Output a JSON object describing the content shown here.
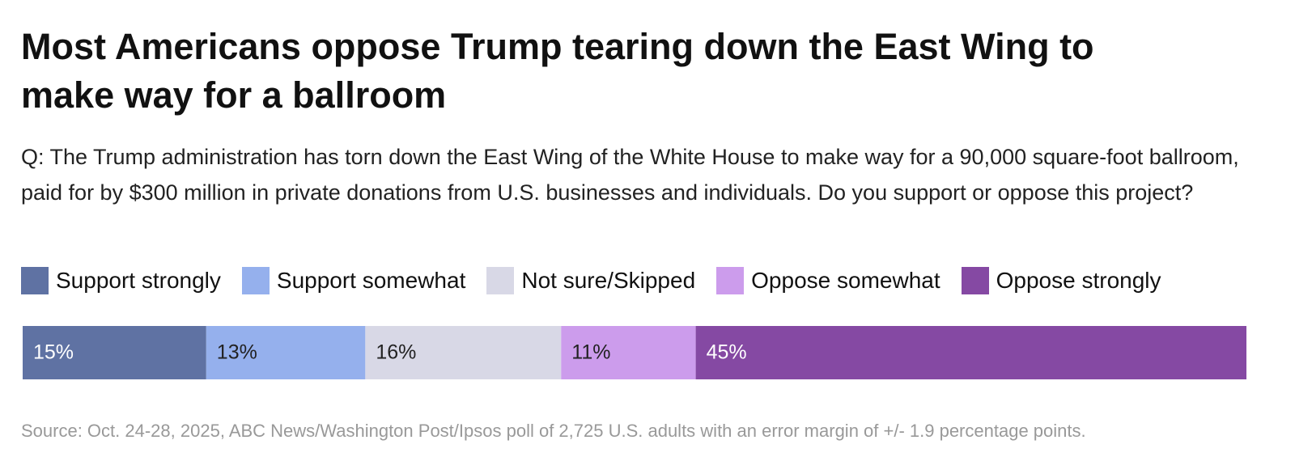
{
  "chart_data": {
    "type": "stacked-bar",
    "title": "Most Americans oppose Trump tearing down the East Wing to make way for a ballroom",
    "subtitle": "Q: The Trump administration has torn down the East Wing of the White House to make way for a 90,000 square-foot ballroom, paid for by $300 million in private donations from U.S. businesses and individuals. Do you support or oppose this project?",
    "series": [
      {
        "name": "Support strongly",
        "color": "#5f72a3",
        "values": [
          15
        ],
        "value_labels": [
          "15%"
        ]
      },
      {
        "name": "Support somewhat",
        "color": "#95b0ed",
        "values": [
          13
        ],
        "value_labels": [
          "13%"
        ]
      },
      {
        "name": "Not sure/Skipped",
        "color": "#d8d8e6",
        "values": [
          16
        ],
        "value_labels": [
          "16%"
        ]
      },
      {
        "name": "Oppose somewhat",
        "color": "#cc9cec",
        "values": [
          11
        ],
        "value_labels": [
          "11%"
        ]
      },
      {
        "name": "Oppose strongly",
        "color": "#8549a3",
        "values": [
          45
        ],
        "value_labels": [
          "45%"
        ]
      }
    ],
    "source": "Source: Oct. 24-28, 2025, ABC News/Washington Post/Ipsos poll of 2,725 U.S. adults with an error margin of +/- 1.9 percentage points."
  }
}
